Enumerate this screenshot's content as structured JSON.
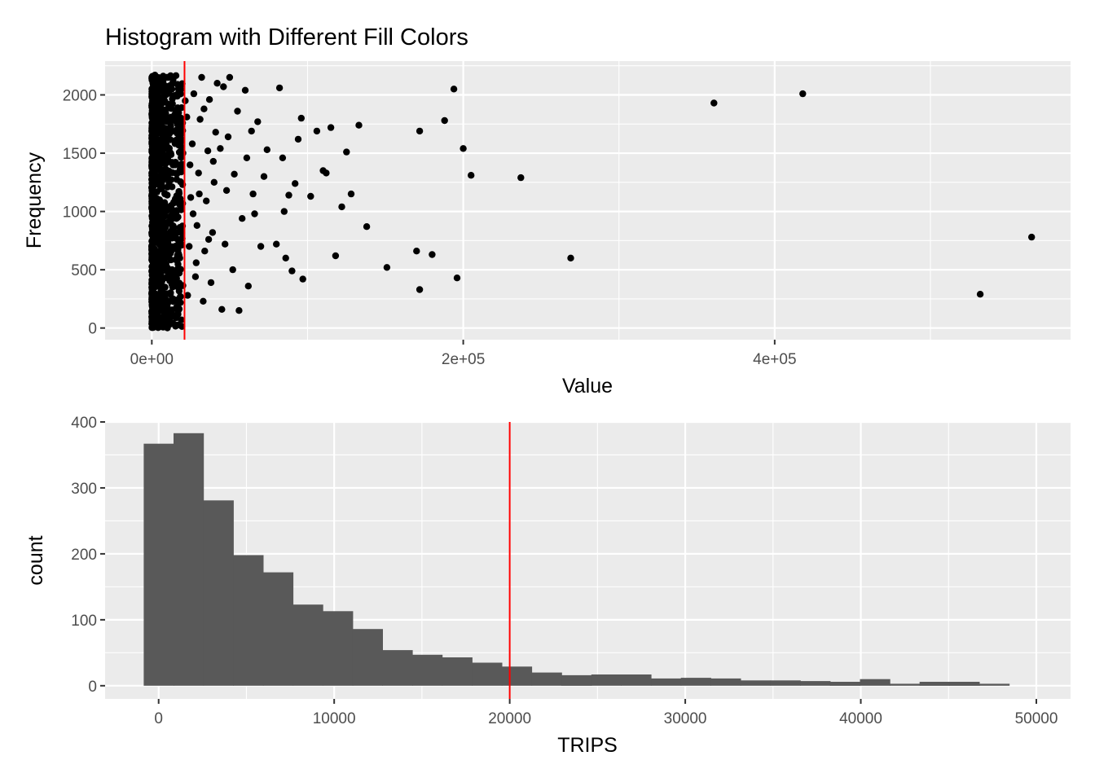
{
  "title": "Histogram with Different Fill Colors",
  "colors": {
    "panel": "#EBEBEB",
    "grid": "#FFFFFF",
    "point": "#000000",
    "bar": "#595959",
    "vline": "#FF0000"
  },
  "chart_data": [
    {
      "type": "scatter",
      "xlabel": "Value",
      "ylabel": "Frequency",
      "xlim": [
        -30000,
        590000
      ],
      "ylim": [
        -100,
        2290
      ],
      "xticks": [
        0,
        200000,
        400000
      ],
      "xtick_labels": [
        "0e+00",
        "2e+05",
        "4e+05"
      ],
      "yticks": [
        0,
        500,
        1000,
        1500,
        2000
      ],
      "ytick_labels": [
        "0",
        "500",
        "1000",
        "1500",
        "2000"
      ],
      "grid": true,
      "vline_x": 21000,
      "points": [
        [
          1500,
          50
        ],
        [
          2500,
          420
        ],
        [
          1000,
          900
        ],
        [
          3500,
          1300
        ],
        [
          800,
          1750
        ],
        [
          4000,
          2100
        ],
        [
          6000,
          200
        ],
        [
          7000,
          650
        ],
        [
          5000,
          1100
        ],
        [
          6500,
          1600
        ],
        [
          9000,
          2000
        ],
        [
          8500,
          350
        ],
        [
          10000,
          800
        ],
        [
          11000,
          1250
        ],
        [
          12000,
          1700
        ],
        [
          10500,
          2150
        ],
        [
          13000,
          500
        ],
        [
          14000,
          950
        ],
        [
          15000,
          1400
        ],
        [
          16000,
          1850
        ],
        [
          17000,
          150
        ],
        [
          18000,
          600
        ],
        [
          19000,
          1050
        ],
        [
          20000,
          1500
        ],
        [
          21500,
          1950
        ],
        [
          2000,
          2170
        ],
        [
          3000,
          1500
        ],
        [
          5500,
          850
        ],
        [
          8000,
          1300
        ],
        [
          12500,
          2050
        ],
        [
          23000,
          280
        ],
        [
          24000,
          700
        ],
        [
          25000,
          1120
        ],
        [
          26000,
          1580
        ],
        [
          27000,
          2010
        ],
        [
          28000,
          440
        ],
        [
          29000,
          880
        ],
        [
          30000,
          1330
        ],
        [
          31000,
          1790
        ],
        [
          32000,
          2150
        ],
        [
          33000,
          230
        ],
        [
          34000,
          660
        ],
        [
          35000,
          1090
        ],
        [
          36000,
          1520
        ],
        [
          37000,
          1960
        ],
        [
          38000,
          390
        ],
        [
          39000,
          820
        ],
        [
          40000,
          1250
        ],
        [
          41000,
          1680
        ],
        [
          42000,
          2100
        ],
        [
          22500,
          1810
        ],
        [
          24500,
          1400
        ],
        [
          26500,
          980
        ],
        [
          28500,
          560
        ],
        [
          30500,
          1150
        ],
        [
          33500,
          1880
        ],
        [
          36500,
          760
        ],
        [
          39500,
          1430
        ],
        [
          44000,
          1540
        ],
        [
          46000,
          2070
        ],
        [
          45000,
          160
        ],
        [
          47000,
          720
        ],
        [
          48000,
          1180
        ],
        [
          49000,
          1640
        ],
        [
          50000,
          2150
        ],
        [
          52000,
          500
        ],
        [
          53000,
          1320
        ],
        [
          55000,
          1860
        ],
        [
          56000,
          150
        ],
        [
          58000,
          940
        ],
        [
          60000,
          2040
        ],
        [
          61000,
          1460
        ],
        [
          62000,
          360
        ],
        [
          64000,
          1690
        ],
        [
          65000,
          1150
        ],
        [
          66000,
          980
        ],
        [
          68000,
          1770
        ],
        [
          70000,
          700
        ],
        [
          72000,
          1300
        ],
        [
          74000,
          1530
        ],
        [
          80000,
          720
        ],
        [
          82000,
          2060
        ],
        [
          84000,
          1460
        ],
        [
          85000,
          1000
        ],
        [
          86000,
          600
        ],
        [
          88000,
          1140
        ],
        [
          90000,
          490
        ],
        [
          92000,
          1240
        ],
        [
          94000,
          1620
        ],
        [
          96000,
          1800
        ],
        [
          97000,
          420
        ],
        [
          102000,
          1130
        ],
        [
          106000,
          1690
        ],
        [
          110000,
          1350
        ],
        [
          112000,
          1330
        ],
        [
          115000,
          1720
        ],
        [
          118000,
          620
        ],
        [
          122000,
          1040
        ],
        [
          125000,
          1510
        ],
        [
          128000,
          1150
        ],
        [
          133000,
          1740
        ],
        [
          138000,
          870
        ],
        [
          151000,
          520
        ],
        [
          170000,
          660
        ],
        [
          172000,
          1690
        ],
        [
          172000,
          330
        ],
        [
          180000,
          630
        ],
        [
          188000,
          1780
        ],
        [
          194000,
          2050
        ],
        [
          196000,
          430
        ],
        [
          200000,
          1540
        ],
        [
          205000,
          1310
        ],
        [
          237000,
          1290
        ],
        [
          269000,
          600
        ],
        [
          361000,
          1930
        ],
        [
          418000,
          2010
        ],
        [
          532000,
          290
        ],
        [
          565000,
          780
        ]
      ]
    },
    {
      "type": "bar",
      "xlabel": "TRIPS",
      "ylabel": "count",
      "xlim": [
        -3050,
        51950
      ],
      "ylim": [
        -20,
        400
      ],
      "xticks": [
        0,
        10000,
        20000,
        30000,
        40000,
        50000
      ],
      "xtick_labels": [
        "0",
        "10000",
        "20000",
        "30000",
        "40000",
        "50000"
      ],
      "yticks": [
        0,
        100,
        200,
        300,
        400
      ],
      "ytick_labels": [
        "0",
        "100",
        "200",
        "300",
        "400"
      ],
      "grid": true,
      "vline_x": 20000,
      "bin_width": 1700,
      "bin_centers": [
        0,
        1700,
        3400,
        5100,
        6800,
        8500,
        10200,
        11900,
        13600,
        15300,
        17000,
        18700,
        20400,
        22100,
        23800,
        25500,
        27200,
        28900,
        30600,
        32300,
        34000,
        35700,
        37400,
        39100,
        40800,
        42500,
        44200,
        45900,
        47600
      ],
      "values": [
        367,
        383,
        281,
        198,
        172,
        123,
        113,
        86,
        54,
        47,
        43,
        35,
        29,
        20,
        16,
        17,
        17,
        11,
        12,
        11,
        8,
        8,
        7,
        6,
        10,
        3,
        6,
        6,
        3
      ]
    }
  ]
}
